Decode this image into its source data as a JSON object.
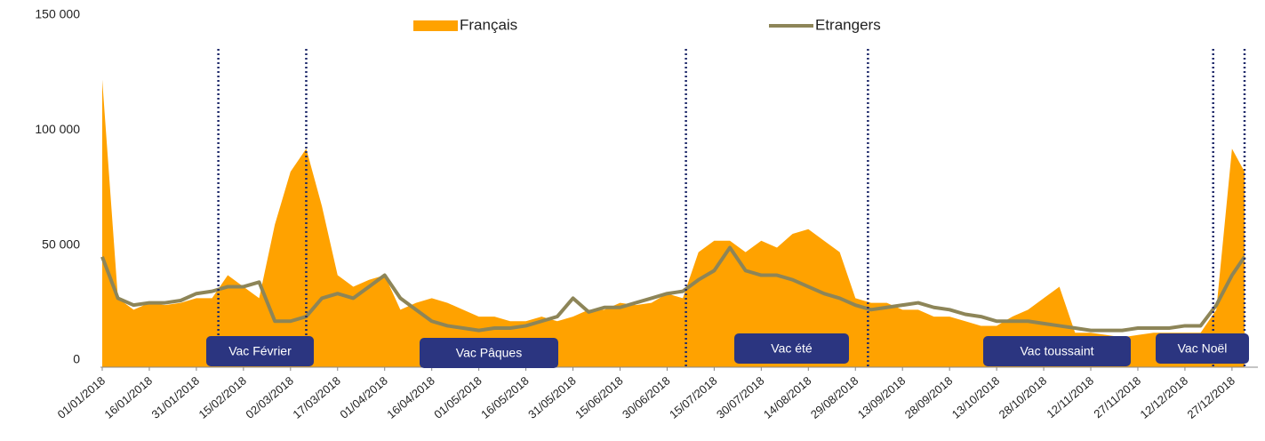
{
  "chart_data": {
    "type": "area-line",
    "x": [
      "01/01/2018",
      "06/01/2018",
      "11/01/2018",
      "16/01/2018",
      "21/01/2018",
      "26/01/2018",
      "31/01/2018",
      "05/02/2018",
      "10/02/2018",
      "15/02/2018",
      "20/02/2018",
      "25/02/2018",
      "02/03/2018",
      "07/03/2018",
      "12/03/2018",
      "17/03/2018",
      "22/03/2018",
      "27/03/2018",
      "01/04/2018",
      "06/04/2018",
      "11/04/2018",
      "16/04/2018",
      "21/04/2018",
      "26/04/2018",
      "01/05/2018",
      "06/05/2018",
      "11/05/2018",
      "16/05/2018",
      "21/05/2018",
      "26/05/2018",
      "31/05/2018",
      "05/06/2018",
      "10/06/2018",
      "15/06/2018",
      "20/06/2018",
      "25/06/2018",
      "30/06/2018",
      "05/07/2018",
      "10/07/2018",
      "15/07/2018",
      "20/07/2018",
      "25/07/2018",
      "30/07/2018",
      "04/08/2018",
      "09/08/2018",
      "14/08/2018",
      "19/08/2018",
      "24/08/2018",
      "29/08/2018",
      "03/09/2018",
      "08/09/2018",
      "13/09/2018",
      "18/09/2018",
      "23/09/2018",
      "28/09/2018",
      "03/10/2018",
      "08/10/2018",
      "13/10/2018",
      "18/10/2018",
      "23/10/2018",
      "28/10/2018",
      "02/11/2018",
      "07/11/2018",
      "12/11/2018",
      "17/11/2018",
      "22/11/2018",
      "27/11/2018",
      "02/12/2018",
      "07/12/2018",
      "12/12/2018",
      "17/12/2018",
      "22/12/2018",
      "27/12/2018",
      "31/12/2018"
    ],
    "series": [
      {
        "name": "Français",
        "color": "#ffa200",
        "kind": "area",
        "values": [
          125000,
          30000,
          25000,
          28000,
          27000,
          28000,
          30000,
          30000,
          40000,
          35000,
          30000,
          62000,
          85000,
          95000,
          70000,
          40000,
          35000,
          38000,
          40000,
          25000,
          28000,
          30000,
          28000,
          25000,
          22000,
          22000,
          20000,
          20000,
          22000,
          20000,
          22000,
          25000,
          25000,
          28000,
          27000,
          28000,
          32000,
          30000,
          50000,
          55000,
          55000,
          50000,
          55000,
          52000,
          58000,
          60000,
          55000,
          50000,
          30000,
          28000,
          28000,
          25000,
          25000,
          22000,
          22000,
          20000,
          18000,
          18000,
          22000,
          25000,
          30000,
          35000,
          15000,
          15000,
          14000,
          13000,
          14000,
          15000,
          15000,
          15000,
          15000,
          25000,
          95000,
          85000
        ]
      },
      {
        "name": "Etrangers",
        "color": "#8d8558",
        "kind": "line",
        "values": [
          48000,
          30000,
          27000,
          28000,
          28000,
          29000,
          32000,
          33000,
          35000,
          35000,
          37000,
          20000,
          20000,
          22000,
          30000,
          32000,
          30000,
          35000,
          40000,
          30000,
          25000,
          20000,
          18000,
          17000,
          16000,
          17000,
          17000,
          18000,
          20000,
          22000,
          30000,
          24000,
          26000,
          26000,
          28000,
          30000,
          32000,
          33000,
          38000,
          42000,
          52000,
          42000,
          40000,
          40000,
          38000,
          35000,
          32000,
          30000,
          27000,
          25000,
          26000,
          27000,
          28000,
          26000,
          25000,
          23000,
          22000,
          20000,
          20000,
          20000,
          19000,
          18000,
          17000,
          16000,
          16000,
          16000,
          17000,
          17000,
          17000,
          18000,
          18000,
          27000,
          40000,
          48000
        ]
      }
    ],
    "ylim": [
      0,
      150000
    ],
    "yticks": [
      0,
      {
        "value": 50000,
        "label": "50 000"
      },
      {
        "value": 100000,
        "label": "100 000"
      },
      {
        "value": 150000,
        "label": "150 000"
      }
    ],
    "xticks": [
      "01/01/2018",
      "16/01/2018",
      "31/01/2018",
      "15/02/2018",
      "02/03/2018",
      "17/03/2018",
      "01/04/2018",
      "16/04/2018",
      "01/05/2018",
      "16/05/2018",
      "31/05/2018",
      "15/06/2018",
      "30/06/2018",
      "15/07/2018",
      "30/07/2018",
      "14/08/2018",
      "29/08/2018",
      "13/09/2018",
      "28/09/2018",
      "13/10/2018",
      "28/10/2018",
      "12/11/2018",
      "27/11/2018",
      "12/12/2018",
      "27/12/2018"
    ],
    "annotations": [
      "Vac Février",
      "Vac Pâques",
      "Vac été",
      "Vac toussaint",
      "Vac Noël"
    ],
    "vlines": [
      "07/02/2018",
      "07/03/2018",
      "06/07/2018",
      "02/09/2018",
      "21/12/2018",
      "31/12/2018"
    ]
  }
}
